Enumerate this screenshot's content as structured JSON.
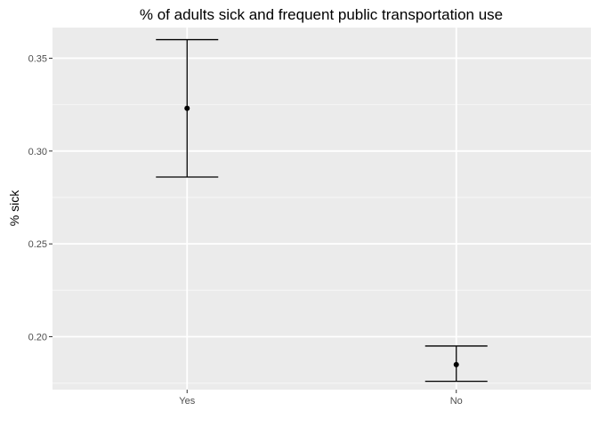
{
  "chart_data": {
    "type": "errorbar",
    "title": "% of adults sick and frequent public transportation use",
    "xlabel": "",
    "ylabel": "% sick",
    "categories": [
      "Yes",
      "No"
    ],
    "points": [
      {
        "category": "Yes",
        "value": 0.323,
        "lower": 0.286,
        "upper": 0.36
      },
      {
        "category": "No",
        "value": 0.185,
        "lower": 0.176,
        "upper": 0.195
      }
    ],
    "ylim": [
      0.1715,
      0.3665
    ],
    "yticks": [
      0.2,
      0.25,
      0.3,
      0.35
    ],
    "ytick_labels": [
      "0.20",
      "0.25",
      "0.30",
      "0.35"
    ],
    "grid": true,
    "colors": {
      "panel_background": "#ebebeb",
      "grid_major": "#ffffff",
      "grid_minor": "#f5f5f5",
      "mark": "#000000",
      "tick_text": "#4d4d4d"
    }
  }
}
